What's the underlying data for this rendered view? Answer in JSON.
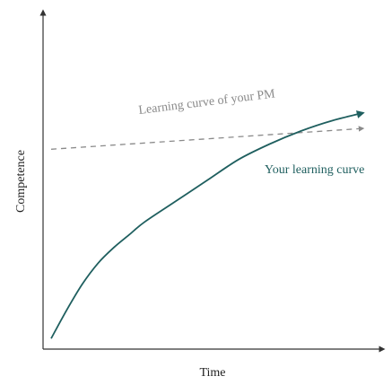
{
  "chart_data": {
    "type": "line",
    "title": "",
    "xlabel": "Time",
    "ylabel": "Competence",
    "xlim": [
      0,
      100
    ],
    "ylim": [
      0,
      100
    ],
    "grid": false,
    "series": [
      {
        "name": "Your learning curve",
        "style": "solid",
        "color": "#1f5f5f",
        "x": [
          0,
          5,
          10,
          15,
          20,
          25,
          30,
          40,
          50,
          60,
          70,
          80,
          90,
          100
        ],
        "y": [
          2,
          13,
          23,
          31,
          37,
          42,
          47,
          55,
          63,
          71,
          77,
          82,
          86,
          89
        ]
      },
      {
        "name": "Learning curve of your PM",
        "style": "dashed",
        "color": "#8a8a8a",
        "x": [
          0,
          100
        ],
        "y": [
          75,
          83
        ]
      }
    ]
  },
  "colors": {
    "axis": "#333333",
    "learner": "#1f5f5f",
    "pm": "#8a8a8a"
  }
}
